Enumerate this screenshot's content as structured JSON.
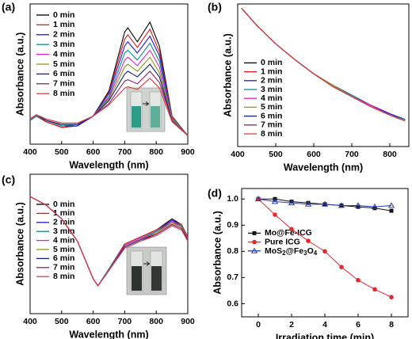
{
  "chart_data": [
    {
      "type": "line",
      "panel": "(a)",
      "x_label": "Wavelength (nm)",
      "y_label": "Absorbance (a.u.)",
      "x": [
        400,
        420,
        450,
        500,
        550,
        600,
        650,
        700,
        710,
        740,
        780,
        810,
        850,
        900
      ],
      "xlim": [
        400,
        900
      ],
      "xticks": [
        400,
        500,
        600,
        700,
        800,
        900
      ],
      "ylim": [
        0,
        1
      ],
      "legend": "upper left",
      "series": [
        {
          "name": "0 min",
          "color": "#000000",
          "values": [
            0.17,
            0.2,
            0.16,
            0.12,
            0.13,
            0.2,
            0.38,
            0.8,
            0.83,
            0.73,
            0.87,
            0.7,
            0.2,
            0.06
          ]
        },
        {
          "name": "1 min",
          "color": "#e8151b",
          "values": [
            0.17,
            0.2,
            0.16,
            0.12,
            0.13,
            0.2,
            0.37,
            0.75,
            0.78,
            0.69,
            0.82,
            0.66,
            0.2,
            0.06
          ]
        },
        {
          "name": "2 min",
          "color": "#1a1ae0",
          "values": [
            0.17,
            0.2,
            0.17,
            0.13,
            0.13,
            0.2,
            0.36,
            0.7,
            0.73,
            0.65,
            0.77,
            0.63,
            0.19,
            0.06
          ]
        },
        {
          "name": "3 min",
          "color": "#0d8a8a",
          "values": [
            0.17,
            0.2,
            0.17,
            0.13,
            0.14,
            0.2,
            0.34,
            0.65,
            0.67,
            0.6,
            0.72,
            0.59,
            0.19,
            0.06
          ]
        },
        {
          "name": "4 min",
          "color": "#e020c8",
          "values": [
            0.18,
            0.21,
            0.17,
            0.14,
            0.14,
            0.2,
            0.33,
            0.6,
            0.62,
            0.56,
            0.67,
            0.55,
            0.18,
            0.06
          ]
        },
        {
          "name": "5 min",
          "color": "#8c9a10",
          "values": [
            0.18,
            0.21,
            0.17,
            0.14,
            0.14,
            0.2,
            0.32,
            0.55,
            0.57,
            0.52,
            0.62,
            0.51,
            0.18,
            0.06
          ]
        },
        {
          "name": "6 min",
          "color": "#102080",
          "values": [
            0.18,
            0.21,
            0.17,
            0.14,
            0.14,
            0.2,
            0.31,
            0.5,
            0.52,
            0.48,
            0.57,
            0.48,
            0.17,
            0.06
          ]
        },
        {
          "name": "7 min",
          "color": "#902070",
          "values": [
            0.18,
            0.21,
            0.18,
            0.15,
            0.15,
            0.2,
            0.29,
            0.45,
            0.46,
            0.43,
            0.52,
            0.44,
            0.17,
            0.06
          ]
        },
        {
          "name": "8 min",
          "color": "#e04040",
          "values": [
            0.18,
            0.21,
            0.18,
            0.15,
            0.15,
            0.2,
            0.28,
            0.4,
            0.41,
            0.39,
            0.47,
            0.4,
            0.16,
            0.06
          ]
        }
      ]
    },
    {
      "type": "line",
      "panel": "(b)",
      "x_label": "Wavelength (nm)",
      "y_label": "Absorbance (a.u.)",
      "x": [
        410,
        450,
        500,
        550,
        600,
        650,
        700,
        750,
        800,
        840
      ],
      "xlim": [
        400,
        850
      ],
      "xticks": [
        400,
        500,
        600,
        700,
        800
      ],
      "ylim": [
        0,
        1
      ],
      "legend": "lower left",
      "series": [
        {
          "name": "0 min",
          "color": "#000000",
          "values": [
            0.97,
            0.85,
            0.72,
            0.61,
            0.51,
            0.43,
            0.36,
            0.29,
            0.23,
            0.19
          ]
        },
        {
          "name": "1 min",
          "color": "#e8151b",
          "values": [
            0.97,
            0.85,
            0.72,
            0.61,
            0.51,
            0.43,
            0.36,
            0.29,
            0.23,
            0.19
          ]
        },
        {
          "name": "2 min",
          "color": "#1a1ae0",
          "values": [
            0.97,
            0.85,
            0.72,
            0.61,
            0.51,
            0.43,
            0.36,
            0.29,
            0.23,
            0.19
          ]
        },
        {
          "name": "3 min",
          "color": "#0d8a8a",
          "values": [
            0.97,
            0.85,
            0.72,
            0.61,
            0.51,
            0.43,
            0.36,
            0.29,
            0.22,
            0.19
          ]
        },
        {
          "name": "4 min",
          "color": "#e020c8",
          "values": [
            0.97,
            0.85,
            0.72,
            0.61,
            0.51,
            0.43,
            0.35,
            0.29,
            0.22,
            0.18
          ]
        },
        {
          "name": "5 min",
          "color": "#8c9a10",
          "values": [
            0.97,
            0.85,
            0.72,
            0.61,
            0.51,
            0.43,
            0.35,
            0.28,
            0.22,
            0.18
          ]
        },
        {
          "name": "6 min",
          "color": "#102080",
          "values": [
            0.97,
            0.85,
            0.72,
            0.61,
            0.51,
            0.42,
            0.35,
            0.28,
            0.22,
            0.18
          ]
        },
        {
          "name": "7 min",
          "color": "#902070",
          "values": [
            0.97,
            0.85,
            0.72,
            0.61,
            0.51,
            0.42,
            0.35,
            0.28,
            0.22,
            0.18
          ]
        },
        {
          "name": "8 min",
          "color": "#e04040",
          "values": [
            0.97,
            0.85,
            0.72,
            0.61,
            0.51,
            0.42,
            0.35,
            0.28,
            0.22,
            0.18
          ]
        }
      ]
    },
    {
      "type": "line",
      "panel": "(c)",
      "x_label": "Wavelength (nm)",
      "y_label": "Absorbance (a.u.)",
      "x": [
        400,
        450,
        500,
        550,
        600,
        615,
        650,
        700,
        750,
        800,
        850,
        880,
        900
      ],
      "xlim": [
        400,
        900
      ],
      "xticks": [
        400,
        500,
        600,
        700,
        800,
        900
      ],
      "ylim": [
        0,
        1
      ],
      "legend": "center left",
      "series": [
        {
          "name": "0 min",
          "color": "#000000",
          "values": [
            0.84,
            0.78,
            0.68,
            0.52,
            0.25,
            0.2,
            0.32,
            0.5,
            0.55,
            0.6,
            0.68,
            0.64,
            0.55
          ]
        },
        {
          "name": "1 min",
          "color": "#e8151b",
          "values": [
            0.84,
            0.78,
            0.68,
            0.52,
            0.25,
            0.2,
            0.32,
            0.5,
            0.55,
            0.6,
            0.67,
            0.64,
            0.55
          ]
        },
        {
          "name": "2 min",
          "color": "#1a1ae0",
          "values": [
            0.84,
            0.78,
            0.68,
            0.52,
            0.25,
            0.2,
            0.32,
            0.49,
            0.54,
            0.59,
            0.67,
            0.63,
            0.54
          ]
        },
        {
          "name": "3 min",
          "color": "#0d8a8a",
          "values": [
            0.84,
            0.78,
            0.68,
            0.52,
            0.25,
            0.2,
            0.32,
            0.49,
            0.54,
            0.59,
            0.66,
            0.63,
            0.54
          ]
        },
        {
          "name": "4 min",
          "color": "#e020c8",
          "values": [
            0.84,
            0.78,
            0.68,
            0.52,
            0.25,
            0.2,
            0.31,
            0.49,
            0.54,
            0.58,
            0.66,
            0.62,
            0.54
          ]
        },
        {
          "name": "5 min",
          "color": "#8c9a10",
          "values": [
            0.84,
            0.78,
            0.68,
            0.52,
            0.25,
            0.2,
            0.31,
            0.48,
            0.53,
            0.58,
            0.65,
            0.62,
            0.53
          ]
        },
        {
          "name": "6 min",
          "color": "#102080",
          "values": [
            0.84,
            0.78,
            0.68,
            0.52,
            0.25,
            0.2,
            0.31,
            0.48,
            0.53,
            0.57,
            0.64,
            0.61,
            0.53
          ]
        },
        {
          "name": "7 min",
          "color": "#902070",
          "values": [
            0.84,
            0.78,
            0.68,
            0.52,
            0.25,
            0.2,
            0.31,
            0.47,
            0.52,
            0.57,
            0.64,
            0.61,
            0.52
          ]
        },
        {
          "name": "8 min",
          "color": "#e04040",
          "values": [
            0.84,
            0.78,
            0.68,
            0.52,
            0.25,
            0.2,
            0.31,
            0.47,
            0.52,
            0.56,
            0.63,
            0.6,
            0.52
          ]
        }
      ]
    },
    {
      "type": "line",
      "panel": "(d)",
      "x_label": "Irradiation time (min)",
      "y_label": "Absorbance (a.u.)",
      "x": [
        0,
        1,
        2,
        3,
        4,
        5,
        6,
        7,
        8
      ],
      "xlim": [
        -1,
        9
      ],
      "xticks": [
        0,
        2,
        4,
        6,
        8
      ],
      "ylim": [
        0.55,
        1.04
      ],
      "yticks": [
        0.6,
        0.7,
        0.8,
        0.9,
        {
          "value": 1,
          "label": "1.0"
        }
      ],
      "legend": "lower left",
      "series": [
        {
          "name": "Mo@Fe-ICG",
          "color": "#111111",
          "marker": "square",
          "values": [
            1.0,
            1.0,
            0.99,
            0.985,
            0.98,
            0.975,
            0.97,
            0.965,
            0.955
          ]
        },
        {
          "name": "Pure ICG",
          "color": "#e8262b",
          "marker": "circle",
          "values": [
            1.0,
            0.94,
            0.885,
            0.84,
            0.8,
            0.74,
            0.69,
            0.655,
            0.625
          ]
        },
        {
          "name": "MoS2@Fe3O4",
          "color": "#2a3bb0",
          "marker": "triangle",
          "values": [
            1.0,
            0.99,
            0.985,
            0.98,
            0.98,
            0.975,
            0.975,
            0.97,
            0.975
          ]
        }
      ]
    }
  ]
}
